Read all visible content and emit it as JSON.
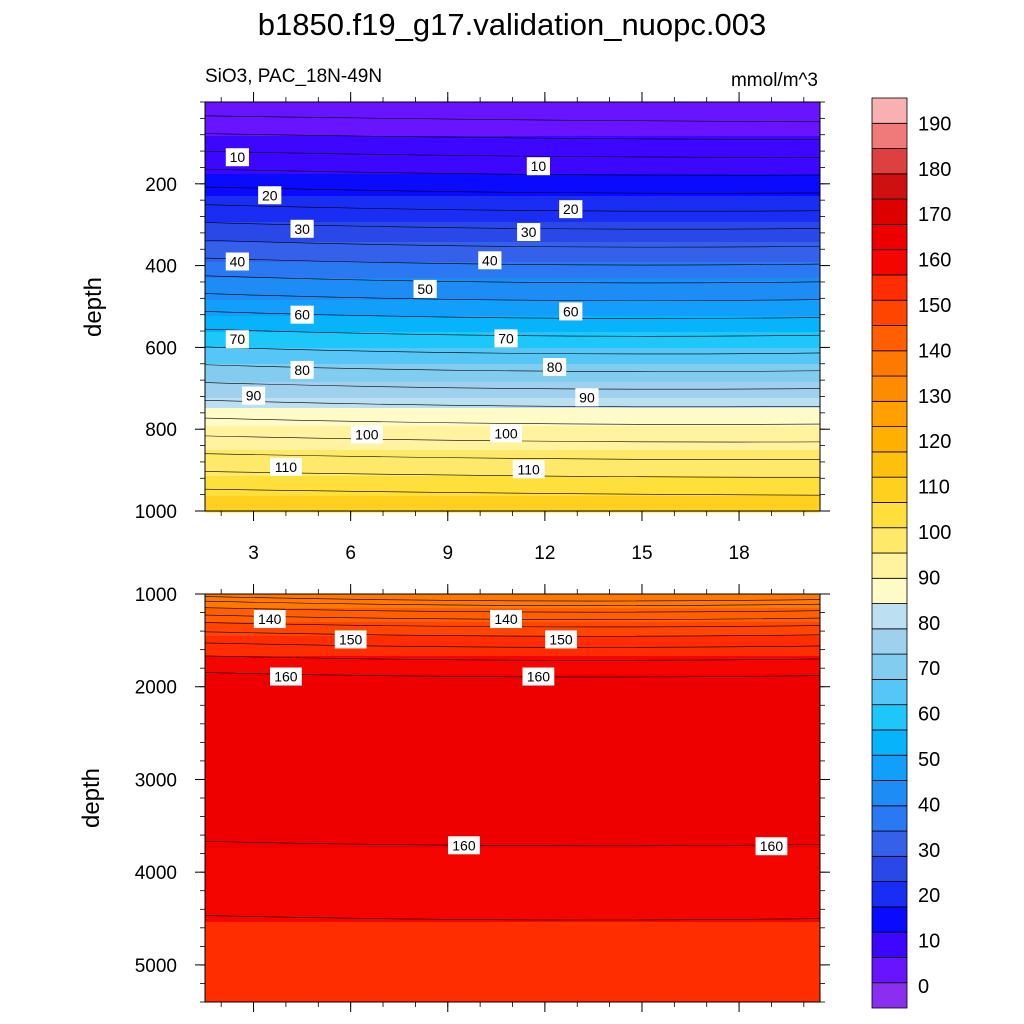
{
  "chart_data": {
    "type": "heatmap",
    "title": "b1850.f19_g17.validation_nuopc.003",
    "subtitle_left": "SiO3, PAC_18N-49N",
    "subtitle_right": "mmol/m^3",
    "colorbar": {
      "levels": [
        0,
        10,
        20,
        30,
        40,
        50,
        60,
        70,
        80,
        90,
        100,
        110,
        120,
        130,
        140,
        150,
        160,
        170,
        180,
        190
      ],
      "tick_labels": [
        "0",
        "10",
        "20",
        "30",
        "40",
        "50",
        "60",
        "70",
        "80",
        "90",
        "100",
        "110",
        "120",
        "130",
        "140",
        "150",
        "160",
        "170",
        "180",
        "190"
      ],
      "colors": [
        "#8a2ff0",
        "#6814ff",
        "#3c06ff",
        "#0a0aff",
        "#1a2df2",
        "#2a48e8",
        "#3560ea",
        "#2a78f2",
        "#1d8df5",
        "#129ffb",
        "#07b4fc",
        "#1ec7fa",
        "#55c6f5",
        "#82ccf0",
        "#9fd0ee",
        "#bce0f2",
        "#fffbc8",
        "#fff3a0",
        "#ffe96a",
        "#ffdf3c",
        "#ffd01e",
        "#ffc00c",
        "#ffb000",
        "#ffa000",
        "#ff8c00",
        "#ff7800",
        "#ff5f00",
        "#ff4500",
        "#ff2d00",
        "#f40500",
        "#ee0000",
        "#dd0000",
        "#cf1010",
        "#dc4040",
        "#f07a7a",
        "#f8b0b0"
      ]
    },
    "panels": [
      {
        "name": "upper",
        "ylabel": "depth",
        "ylim": [
          0,
          1000
        ],
        "y_ticks": [
          200,
          400,
          600,
          800,
          1000
        ],
        "y_tick_labels": [
          "200",
          "400",
          "600",
          "800",
          "1000"
        ],
        "x_ticks": [
          3,
          6,
          9,
          12,
          15,
          18
        ],
        "x_tick_labels": [
          "3",
          "6",
          "9",
          "12",
          "15",
          "18"
        ],
        "contour_labels": [
          {
            "x": 2.5,
            "depth": 135,
            "text": "10"
          },
          {
            "x": 11.8,
            "depth": 157,
            "text": "10"
          },
          {
            "x": 3.5,
            "depth": 228,
            "text": "20"
          },
          {
            "x": 12.8,
            "depth": 262,
            "text": "20"
          },
          {
            "x": 4.5,
            "depth": 310,
            "text": "30"
          },
          {
            "x": 11.5,
            "depth": 318,
            "text": "30"
          },
          {
            "x": 2.5,
            "depth": 390,
            "text": "40"
          },
          {
            "x": 10.3,
            "depth": 387,
            "text": "40"
          },
          {
            "x": 8.3,
            "depth": 457,
            "text": "50"
          },
          {
            "x": 4.5,
            "depth": 520,
            "text": "60"
          },
          {
            "x": 12.8,
            "depth": 512,
            "text": "60"
          },
          {
            "x": 2.5,
            "depth": 580,
            "text": "70"
          },
          {
            "x": 10.8,
            "depth": 578,
            "text": "70"
          },
          {
            "x": 4.5,
            "depth": 655,
            "text": "80"
          },
          {
            "x": 12.3,
            "depth": 648,
            "text": "80"
          },
          {
            "x": 3.0,
            "depth": 718,
            "text": "90"
          },
          {
            "x": 13.3,
            "depth": 722,
            "text": "90"
          },
          {
            "x": 6.5,
            "depth": 813,
            "text": "100"
          },
          {
            "x": 10.8,
            "depth": 810,
            "text": "100"
          },
          {
            "x": 4.0,
            "depth": 892,
            "text": "110"
          },
          {
            "x": 11.5,
            "depth": 898,
            "text": "110"
          }
        ]
      },
      {
        "name": "lower",
        "ylabel": "depth",
        "ylim": [
          1000,
          5400
        ],
        "y_ticks": [
          1000,
          2000,
          3000,
          4000,
          5000
        ],
        "y_tick_labels": [
          "1000",
          "2000",
          "3000",
          "4000",
          "5000"
        ],
        "contour_labels": [
          {
            "x": 3.5,
            "depth": 1270,
            "text": "140"
          },
          {
            "x": 10.8,
            "depth": 1270,
            "text": "140"
          },
          {
            "x": 6.0,
            "depth": 1490,
            "text": "150"
          },
          {
            "x": 12.5,
            "depth": 1490,
            "text": "150"
          },
          {
            "x": 4.0,
            "depth": 1890,
            "text": "160"
          },
          {
            "x": 11.8,
            "depth": 1890,
            "text": "160"
          },
          {
            "x": 9.5,
            "depth": 3710,
            "text": "160"
          },
          {
            "x": 19.0,
            "depth": 3720,
            "text": "160"
          }
        ]
      }
    ],
    "xlim": [
      1.5,
      20.5
    ]
  }
}
